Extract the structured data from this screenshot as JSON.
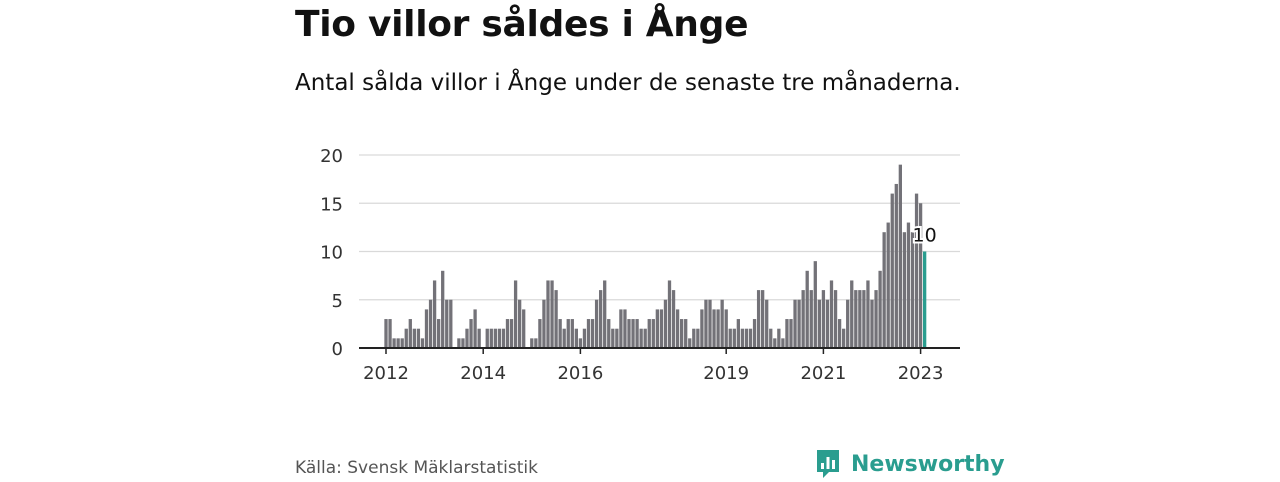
{
  "header": {
    "title": "Tio villor såldes i Ånge",
    "subtitle": "Antal sålda villor i Ånge under de senaste tre månaderna."
  },
  "chart_data": {
    "type": "bar",
    "ylim": [
      0,
      20
    ],
    "y_ticks": [
      "0",
      "5",
      "10",
      "15",
      "20"
    ],
    "x_ticks": [
      {
        "label": "2012",
        "index": 0
      },
      {
        "label": "2014",
        "index": 24
      },
      {
        "label": "2016",
        "index": 48
      },
      {
        "label": "2019",
        "index": 84
      },
      {
        "label": "2021",
        "index": 108
      },
      {
        "label": "2023",
        "index": 132
      }
    ],
    "grid": true,
    "values": [
      3,
      3,
      1,
      1,
      1,
      2,
      3,
      2,
      2,
      1,
      4,
      5,
      7,
      3,
      8,
      5,
      5,
      0,
      1,
      1,
      2,
      3,
      4,
      2,
      0,
      2,
      2,
      2,
      2,
      2,
      3,
      3,
      7,
      5,
      4,
      0,
      1,
      1,
      3,
      5,
      7,
      7,
      6,
      3,
      2,
      3,
      3,
      2,
      1,
      2,
      3,
      3,
      5,
      6,
      7,
      3,
      2,
      2,
      4,
      4,
      3,
      3,
      3,
      2,
      2,
      3,
      3,
      4,
      4,
      5,
      7,
      6,
      4,
      3,
      3,
      1,
      2,
      2,
      4,
      5,
      5,
      4,
      4,
      5,
      4,
      2,
      2,
      3,
      2,
      2,
      2,
      3,
      6,
      6,
      5,
      2,
      1,
      2,
      1,
      3,
      3,
      5,
      5,
      6,
      8,
      6,
      9,
      5,
      6,
      5,
      7,
      6,
      3,
      2,
      5,
      7,
      6,
      6,
      6,
      7,
      5,
      6,
      8,
      12,
      13,
      16,
      17,
      19,
      12,
      13,
      12,
      16,
      15,
      10
    ],
    "highlight_index": 133,
    "highlight_label": "10",
    "bar_color": "#737278",
    "highlight_color": "#2a9d8f",
    "source": "Källa: Svensk Mäklarstatistik"
  },
  "brand": {
    "name": "Newsworthy",
    "color": "#2a9d8f",
    "icon": "newsworthy-logo-icon"
  }
}
